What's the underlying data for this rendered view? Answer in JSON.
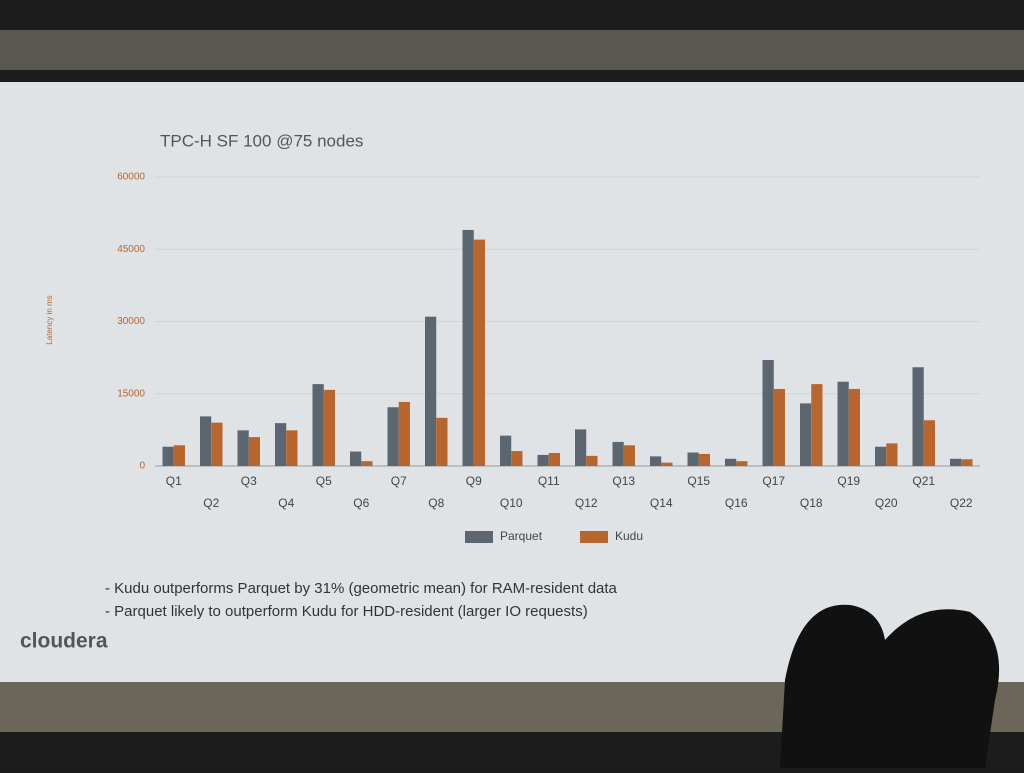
{
  "chart_data": {
    "type": "bar",
    "title": "TPC-H SF 100 @75 nodes",
    "y_label": "Latency in ms",
    "categories": [
      "Q1",
      "Q2",
      "Q3",
      "Q4",
      "Q5",
      "Q6",
      "Q7",
      "Q8",
      "Q9",
      "Q10",
      "Q11",
      "Q12",
      "Q13",
      "Q14",
      "Q15",
      "Q16",
      "Q17",
      "Q18",
      "Q19",
      "Q20",
      "Q21",
      "Q22"
    ],
    "series": [
      {
        "name": "Parquet",
        "color": "#5b6670",
        "values": [
          4000,
          10300,
          7400,
          8900,
          17000,
          3000,
          12200,
          31000,
          49000,
          6300,
          2300,
          7600,
          5000,
          2000,
          2800,
          1500,
          22000,
          13000,
          17500,
          4000,
          20500,
          1500
        ]
      },
      {
        "name": "Kudu",
        "color": "#b8662e",
        "values": [
          4300,
          9000,
          6000,
          7400,
          15800,
          1000,
          13300,
          10000,
          47000,
          3100,
          2700,
          2100,
          4300,
          700,
          2500,
          1000,
          16000,
          17000,
          16000,
          4700,
          9500,
          1400
        ]
      }
    ],
    "ylim": [
      0,
      60000
    ],
    "yticks": [
      0,
      15000,
      30000,
      45000,
      60000
    ],
    "grid": true,
    "legend": "bottom",
    "notes": [
      "- Kudu outperforms Parquet by 31% (geometric mean) for RAM-resident data",
      "- Parquet likely to outperform Kudu for HDD-resident (larger IO requests)"
    ],
    "logo": "cloudera"
  }
}
